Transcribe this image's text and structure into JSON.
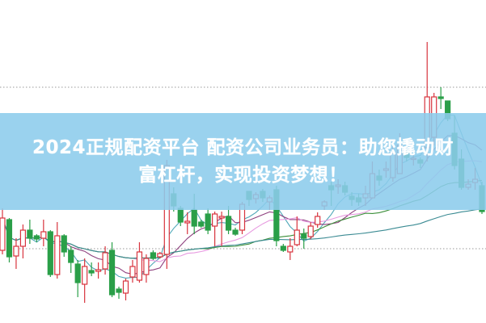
{
  "banner": {
    "line1": "2024正规配资平台 配资公司业务员：助您撬动财",
    "line2": "富杠杆，实现投资梦想！"
  },
  "chart_data": {
    "type": "candlestick",
    "title": "",
    "xlabel": "",
    "ylabel": "",
    "axes_visible": false,
    "grid": "two dotted horizontal reference lines",
    "reference_lines": [
      292,
      92
    ],
    "ylim": [
      0,
      400
    ],
    "fields": [
      "open",
      "high",
      "low",
      "close"
    ],
    "candles": [
      [
        90,
        142,
        85,
        130
      ],
      [
        128,
        130,
        75,
        82
      ],
      [
        83,
        105,
        67,
        95
      ],
      [
        95,
        122,
        80,
        115
      ],
      [
        115,
        128,
        98,
        105
      ],
      [
        108,
        110,
        100,
        104
      ],
      [
        105,
        128,
        95,
        113
      ],
      [
        113,
        115,
        57,
        60
      ],
      [
        60,
        125,
        55,
        108
      ],
      [
        108,
        110,
        82,
        88
      ],
      [
        90,
        95,
        62,
        75
      ],
      [
        73,
        78,
        32,
        50
      ],
      [
        48,
        80,
        25,
        70
      ],
      [
        65,
        75,
        58,
        62
      ],
      [
        64,
        75,
        55,
        66
      ],
      [
        67,
        95,
        60,
        87
      ],
      [
        90,
        100,
        32,
        35
      ],
      [
        42,
        45,
        30,
        38
      ],
      [
        37,
        55,
        28,
        52
      ],
      [
        57,
        78,
        50,
        70
      ],
      [
        53,
        100,
        50,
        88
      ],
      [
        60,
        85,
        50,
        80
      ],
      [
        87,
        90,
        78,
        80
      ],
      [
        82,
        88,
        80,
        86
      ],
      [
        85,
        202,
        67,
        195
      ],
      [
        160,
        168,
        138,
        145
      ],
      [
        142,
        145,
        120,
        125
      ],
      [
        124,
        137,
        110,
        126
      ],
      [
        140,
        160,
        110,
        120
      ],
      [
        125,
        128,
        118,
        120
      ],
      [
        135,
        142,
        110,
        115
      ],
      [
        120,
        138,
        95,
        135
      ],
      [
        130,
        138,
        95,
        132
      ],
      [
        132,
        145,
        110,
        115
      ],
      [
        115,
        118,
        108,
        110
      ],
      [
        115,
        150,
        110,
        147
      ],
      [
        163,
        163,
        145,
        153
      ],
      [
        154,
        162,
        148,
        159
      ],
      [
        163,
        166,
        150,
        155
      ],
      [
        150,
        158,
        140,
        155
      ],
      [
        165,
        170,
        95,
        102
      ],
      [
        95,
        98,
        88,
        90
      ],
      [
        88,
        105,
        78,
        95
      ],
      [
        97,
        132,
        95,
        115
      ],
      [
        110,
        117,
        92,
        105
      ],
      [
        107,
        125,
        104,
        120
      ],
      [
        122,
        137,
        118,
        132
      ],
      [
        145,
        152,
        140,
        150
      ],
      [
        170,
        175,
        145,
        165
      ],
      [
        169,
        178,
        160,
        171
      ],
      [
        170,
        175,
        158,
        162
      ],
      [
        157,
        162,
        145,
        153
      ],
      [
        155,
        160,
        145,
        150
      ],
      [
        155,
        170,
        145,
        160
      ],
      [
        155,
        200,
        155,
        185
      ],
      [
        182,
        190,
        170,
        177
      ],
      [
        189,
        200,
        180,
        191
      ],
      [
        180,
        225,
        175,
        210
      ],
      [
        185,
        235,
        185,
        220
      ],
      [
        210,
        215,
        200,
        205
      ],
      [
        203,
        210,
        195,
        204
      ],
      [
        202,
        205,
        192,
        198
      ],
      [
        217,
        348,
        200,
        280
      ],
      [
        230,
        285,
        220,
        280
      ],
      [
        280,
        292,
        265,
        278
      ],
      [
        275,
        275,
        250,
        253
      ],
      [
        235,
        257,
        190,
        195
      ],
      [
        203,
        215,
        165,
        168
      ],
      [
        168,
        178,
        165,
        172
      ],
      [
        174,
        192,
        165,
        178
      ],
      [
        170,
        175,
        135,
        138
      ]
    ],
    "moving_averages": [
      {
        "period": 5,
        "color": "#4fa7b8"
      },
      {
        "period": 10,
        "color": "#8e3f7e"
      },
      {
        "period": 20,
        "color": "#e79ae0"
      },
      {
        "period": 30,
        "color": "#3c8f3a"
      },
      {
        "period": 60,
        "color": "#3b8b93"
      }
    ],
    "colors": {
      "up": "#d8343e",
      "down": "#2a9f48",
      "reference_line": "#9a9a9a"
    }
  }
}
